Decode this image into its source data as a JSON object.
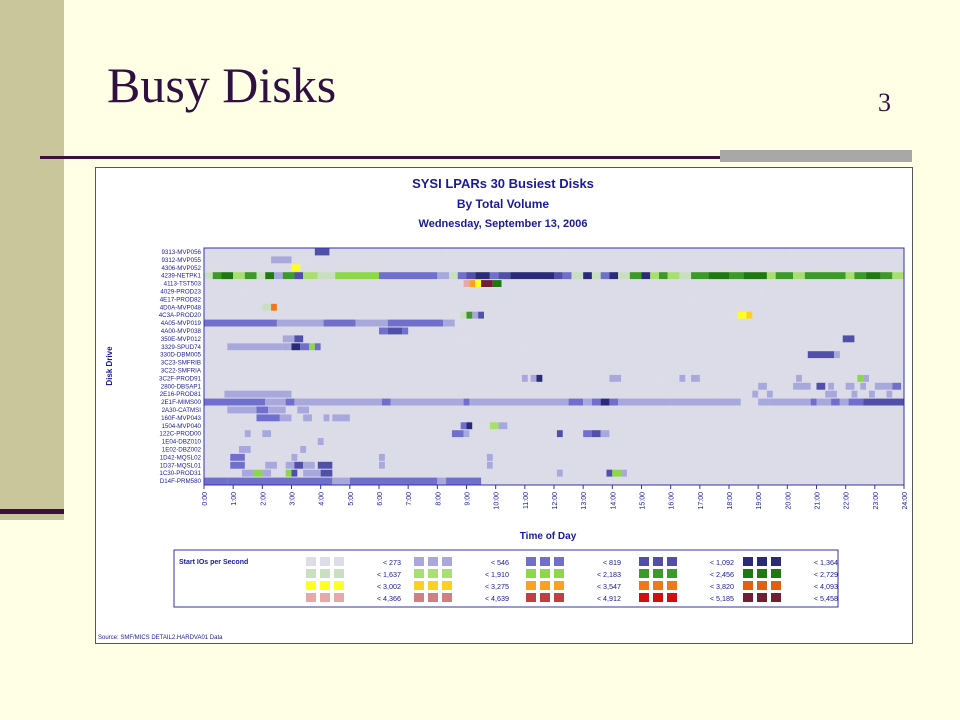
{
  "slide": {
    "title": "Busy Disks",
    "number": "3"
  },
  "chart_data": {
    "type": "heatmap",
    "title": "SYSI LPARs 30 Busiest Disks",
    "subtitle": "By Total Volume",
    "date": "Wednesday, September 13, 2006",
    "xlabel": "Time of Day",
    "ylabel": "Disk Drive",
    "xlim": [
      0,
      24
    ],
    "x_ticks": [
      "0:00",
      "1:00",
      "2:00",
      "3:00",
      "4:00",
      "5:00",
      "6:00",
      "7:00",
      "8:00",
      "9:00",
      "10:00",
      "11:00",
      "12:00",
      "13:00",
      "14:00",
      "15:00",
      "16:00",
      "17:00",
      "18:00",
      "19:00",
      "20:00",
      "21:00",
      "22:00",
      "23:00",
      "24:00"
    ],
    "y_categories": [
      "9313-MVP056",
      "9312-MVP055",
      "4306-MVP052",
      "4239-NETPK1",
      "4113-TST503",
      "4029-PROD23",
      "4E17-PROD82",
      "4D0A-MVP048",
      "4C3A-PROD20",
      "4A05-MVP019",
      "4A00-MVP038",
      "350E-MVP012",
      "3329-SPUD74",
      "330D-DBM005",
      "3C23-SMFRIB",
      "3C22-SMFRIA",
      "3C2F-PROD91",
      "2800-DBSAP1",
      "2E16-PROD81",
      "2E1F-MIMS00",
      "2A30-CATMSI",
      "160F-MVP043",
      "1504-MVP040",
      "122C-PROD00",
      "1E04-DBZ010",
      "1E02-DBZ002",
      "1D42-MQSL02",
      "1D37-MQSL01",
      "1C30-PROD31",
      "D14F-PRM580"
    ],
    "colors": [
      "#DDDDE6",
      "#A8A8DC",
      "#7070CC",
      "#5050A8",
      "#2A2A78",
      "#C8E0C0",
      "#A8E070",
      "#8CD848",
      "#3C9A28",
      "#1E7A10",
      "#FFFF20",
      "#FFD020",
      "#FFA020",
      "#F07818",
      "#E06010",
      "#E8A8A8",
      "#D08080",
      "#C04040",
      "#D01010",
      "#702030"
    ],
    "legend_title": "Start IOs per Second",
    "legend_rows": [
      [
        "< 273",
        "< 546",
        "< 819",
        "< 1,092",
        "< 1,364"
      ],
      [
        "< 1,637",
        "< 1,910",
        "< 2,183",
        "< 2,456",
        "< 2,729"
      ],
      [
        "< 3,002",
        "< 3,275",
        "< 3,547",
        "< 3,820",
        "< 4,093"
      ],
      [
        "< 4,366",
        "< 4,639",
        "< 4,912",
        "< 5,185",
        "< 5,458"
      ]
    ],
    "cells": [
      [
        0,
        0.5,
        0.5,
        0
      ],
      [
        0,
        3.8,
        4.3,
        3
      ],
      [
        0,
        7.7,
        7.9,
        0
      ],
      [
        0,
        8.2,
        8.4,
        0
      ],
      [
        0,
        12.1,
        12.4,
        0
      ],
      [
        0,
        19.5,
        19.7,
        0
      ],
      [
        0,
        20.0,
        20.2,
        0
      ],
      [
        1,
        2.3,
        3.0,
        1
      ],
      [
        1,
        3.2,
        3.5,
        0
      ],
      [
        2,
        0.3,
        0.5,
        0
      ],
      [
        2,
        3.0,
        3.3,
        10
      ],
      [
        3,
        0,
        0.3,
        5
      ],
      [
        3,
        0.3,
        0.6,
        8
      ],
      [
        3,
        0.6,
        1.0,
        9
      ],
      [
        3,
        1.0,
        1.4,
        6
      ],
      [
        3,
        1.4,
        1.8,
        8
      ],
      [
        3,
        1.8,
        2.1,
        5
      ],
      [
        3,
        2.1,
        2.4,
        9
      ],
      [
        3,
        2.4,
        2.7,
        1
      ],
      [
        3,
        2.7,
        3.1,
        8
      ],
      [
        3,
        3.1,
        3.4,
        3
      ],
      [
        3,
        3.4,
        3.9,
        6
      ],
      [
        3,
        3.9,
        4.5,
        5
      ],
      [
        3,
        4.5,
        6.0,
        7
      ],
      [
        3,
        6.0,
        8.0,
        2
      ],
      [
        3,
        8.0,
        8.4,
        1
      ],
      [
        3,
        8.4,
        8.7,
        5
      ],
      [
        3,
        8.7,
        9.0,
        2
      ],
      [
        3,
        9.0,
        9.3,
        3
      ],
      [
        3,
        9.3,
        9.8,
        4
      ],
      [
        3,
        9.8,
        10.1,
        2
      ],
      [
        3,
        10.1,
        10.5,
        3
      ],
      [
        3,
        10.5,
        12.0,
        4
      ],
      [
        3,
        12.0,
        12.3,
        3
      ],
      [
        3,
        12.3,
        12.6,
        2
      ],
      [
        3,
        12.6,
        13.0,
        5
      ],
      [
        3,
        13.0,
        13.3,
        4
      ],
      [
        3,
        13.3,
        13.6,
        5
      ],
      [
        3,
        13.6,
        13.9,
        2
      ],
      [
        3,
        13.9,
        14.2,
        4
      ],
      [
        3,
        14.2,
        14.6,
        5
      ],
      [
        3,
        14.6,
        15.0,
        8
      ],
      [
        3,
        15.0,
        15.3,
        4
      ],
      [
        3,
        15.3,
        15.6,
        6
      ],
      [
        3,
        15.6,
        15.9,
        8
      ],
      [
        3,
        15.9,
        16.3,
        6
      ],
      [
        3,
        16.3,
        16.7,
        5
      ],
      [
        3,
        16.7,
        17.3,
        8
      ],
      [
        3,
        17.3,
        18.0,
        9
      ],
      [
        3,
        18.0,
        18.5,
        8
      ],
      [
        3,
        18.5,
        19.3,
        9
      ],
      [
        3,
        19.3,
        19.6,
        6
      ],
      [
        3,
        19.6,
        20.2,
        8
      ],
      [
        3,
        20.2,
        20.6,
        6
      ],
      [
        3,
        20.6,
        21.0,
        8
      ],
      [
        3,
        21.0,
        22.0,
        8
      ],
      [
        3,
        22.0,
        22.3,
        6
      ],
      [
        3,
        22.3,
        22.7,
        8
      ],
      [
        3,
        22.7,
        23.2,
        9
      ],
      [
        3,
        23.2,
        23.6,
        8
      ],
      [
        3,
        23.6,
        24.0,
        6
      ],
      [
        4,
        8.9,
        9.1,
        15
      ],
      [
        4,
        9.1,
        9.3,
        12
      ],
      [
        4,
        9.3,
        9.5,
        10
      ],
      [
        4,
        9.5,
        9.9,
        19
      ],
      [
        4,
        9.9,
        10.2,
        9
      ],
      [
        5,
        1.3,
        1.5,
        0
      ],
      [
        5,
        19.0,
        19.2,
        0
      ],
      [
        6,
        16.7,
        16.9,
        0
      ],
      [
        7,
        2.0,
        2.3,
        5
      ],
      [
        7,
        2.3,
        2.5,
        13
      ],
      [
        7,
        2.5,
        2.7,
        0
      ],
      [
        8,
        8.4,
        8.8,
        0
      ],
      [
        8,
        8.8,
        9.0,
        5
      ],
      [
        8,
        9.0,
        9.2,
        8
      ],
      [
        8,
        9.2,
        9.4,
        1
      ],
      [
        8,
        9.4,
        9.6,
        3
      ],
      [
        8,
        18.0,
        18.3,
        0
      ],
      [
        8,
        18.3,
        18.6,
        10
      ],
      [
        8,
        18.6,
        18.8,
        11
      ],
      [
        9,
        0,
        2.5,
        2
      ],
      [
        9,
        2.5,
        4.1,
        1
      ],
      [
        9,
        4.1,
        5.2,
        2
      ],
      [
        9,
        5.2,
        6.3,
        1
      ],
      [
        9,
        6.3,
        8.2,
        2
      ],
      [
        9,
        8.2,
        8.6,
        1
      ],
      [
        9,
        8.6,
        8.9,
        0
      ],
      [
        10,
        6.0,
        6.3,
        2
      ],
      [
        10,
        6.3,
        6.8,
        3
      ],
      [
        10,
        6.8,
        7.0,
        2
      ],
      [
        11,
        2.7,
        3.1,
        1
      ],
      [
        11,
        3.1,
        3.4,
        3
      ],
      [
        11,
        8.8,
        9.2,
        0
      ],
      [
        11,
        21.7,
        21.9,
        0
      ],
      [
        11,
        21.9,
        22.3,
        3
      ],
      [
        12,
        0.8,
        2.7,
        1
      ],
      [
        12,
        2.7,
        3.0,
        1
      ],
      [
        12,
        3.0,
        3.3,
        4
      ],
      [
        12,
        3.3,
        3.6,
        2
      ],
      [
        12,
        3.6,
        3.8,
        7
      ],
      [
        12,
        3.8,
        4.0,
        2
      ],
      [
        12,
        10.9,
        11.1,
        0
      ],
      [
        12,
        21.5,
        21.7,
        0
      ],
      [
        13,
        20.7,
        21.6,
        3
      ],
      [
        13,
        21.6,
        21.8,
        1
      ],
      [
        16,
        10.9,
        11.1,
        1
      ],
      [
        16,
        11.2,
        11.4,
        1
      ],
      [
        16,
        11.4,
        11.6,
        4
      ],
      [
        16,
        13.9,
        14.3,
        1
      ],
      [
        16,
        15.4,
        15.6,
        0
      ],
      [
        16,
        16.3,
        16.5,
        1
      ],
      [
        16,
        16.7,
        17.0,
        1
      ],
      [
        16,
        20.3,
        20.5,
        1
      ],
      [
        16,
        22.2,
        22.4,
        0
      ],
      [
        16,
        22.4,
        22.6,
        7
      ],
      [
        16,
        22.6,
        22.8,
        1
      ],
      [
        17,
        18.9,
        19.1,
        0
      ],
      [
        17,
        19.0,
        19.3,
        1
      ],
      [
        17,
        20.2,
        20.5,
        1
      ],
      [
        17,
        20.5,
        20.8,
        1
      ],
      [
        17,
        21.0,
        21.3,
        3
      ],
      [
        17,
        21.4,
        21.6,
        1
      ],
      [
        17,
        22.0,
        22.3,
        1
      ],
      [
        17,
        22.5,
        22.7,
        1
      ],
      [
        17,
        23.0,
        23.6,
        1
      ],
      [
        17,
        23.6,
        23.9,
        2
      ],
      [
        18,
        0.4,
        0.7,
        0
      ],
      [
        18,
        0.7,
        3.0,
        1
      ],
      [
        18,
        3.0,
        3.2,
        0
      ],
      [
        18,
        17.3,
        17.6,
        0
      ],
      [
        18,
        18.8,
        19.0,
        1
      ],
      [
        18,
        19.3,
        19.5,
        1
      ],
      [
        18,
        21.3,
        21.7,
        1
      ],
      [
        18,
        22.2,
        22.4,
        1
      ],
      [
        18,
        22.8,
        23.0,
        1
      ],
      [
        18,
        23.4,
        23.6,
        1
      ],
      [
        18,
        23.6,
        24.0,
        0
      ],
      [
        19,
        0,
        2.1,
        2
      ],
      [
        19,
        2.1,
        2.8,
        1
      ],
      [
        19,
        2.8,
        3.1,
        2
      ],
      [
        19,
        3.1,
        4.2,
        1
      ],
      [
        19,
        4.2,
        6.1,
        1
      ],
      [
        19,
        6.1,
        6.4,
        2
      ],
      [
        19,
        6.4,
        8.9,
        1
      ],
      [
        19,
        8.9,
        9.1,
        2
      ],
      [
        19,
        9.1,
        12.5,
        1
      ],
      [
        19,
        12.5,
        13.0,
        2
      ],
      [
        19,
        13.0,
        13.3,
        1
      ],
      [
        19,
        13.3,
        13.6,
        2
      ],
      [
        19,
        13.6,
        13.9,
        4
      ],
      [
        19,
        13.9,
        14.2,
        2
      ],
      [
        19,
        14.2,
        16.0,
        1
      ],
      [
        19,
        16.0,
        17.4,
        1
      ],
      [
        19,
        17.4,
        18.4,
        1
      ],
      [
        19,
        19.0,
        19.4,
        1
      ],
      [
        19,
        19.4,
        20.8,
        1
      ],
      [
        19,
        20.8,
        21.0,
        2
      ],
      [
        19,
        21.0,
        21.5,
        1
      ],
      [
        19,
        21.5,
        21.8,
        2
      ],
      [
        19,
        21.8,
        22.1,
        1
      ],
      [
        19,
        22.1,
        22.6,
        2
      ],
      [
        19,
        22.6,
        24.0,
        3
      ],
      [
        20,
        0.8,
        1.8,
        1
      ],
      [
        20,
        1.8,
        2.2,
        2
      ],
      [
        20,
        2.2,
        2.8,
        1
      ],
      [
        20,
        3.2,
        3.6,
        1
      ],
      [
        21,
        1.8,
        2.6,
        2
      ],
      [
        21,
        2.6,
        3.0,
        1
      ],
      [
        21,
        3.4,
        3.7,
        1
      ],
      [
        21,
        4.1,
        4.3,
        1
      ],
      [
        21,
        4.4,
        5.0,
        1
      ],
      [
        22,
        8.8,
        9.0,
        2
      ],
      [
        22,
        9.0,
        9.2,
        4
      ],
      [
        22,
        9.2,
        9.4,
        0
      ],
      [
        22,
        9.5,
        9.8,
        0
      ],
      [
        22,
        9.8,
        10.1,
        6
      ],
      [
        22,
        10.1,
        10.4,
        1
      ],
      [
        23,
        1.4,
        1.6,
        1
      ],
      [
        23,
        2.0,
        2.3,
        1
      ],
      [
        23,
        8.5,
        8.9,
        2
      ],
      [
        23,
        8.9,
        9.1,
        1
      ],
      [
        23,
        12.1,
        12.3,
        3
      ],
      [
        23,
        13.0,
        13.3,
        2
      ],
      [
        23,
        13.3,
        13.6,
        3
      ],
      [
        23,
        13.6,
        13.9,
        1
      ],
      [
        24,
        3.9,
        4.1,
        1
      ],
      [
        25,
        1.2,
        1.6,
        1
      ],
      [
        25,
        3.3,
        3.5,
        1
      ],
      [
        26,
        0.9,
        1.4,
        2
      ],
      [
        26,
        2.4,
        2.6,
        0
      ],
      [
        26,
        3.0,
        3.2,
        1
      ],
      [
        26,
        4.2,
        4.4,
        0
      ],
      [
        26,
        6.0,
        6.2,
        1
      ],
      [
        26,
        9.7,
        9.9,
        1
      ],
      [
        27,
        0.9,
        1.4,
        2
      ],
      [
        27,
        2.1,
        2.5,
        1
      ],
      [
        27,
        2.8,
        3.1,
        1
      ],
      [
        27,
        3.1,
        3.4,
        3
      ],
      [
        27,
        3.4,
        3.8,
        1
      ],
      [
        27,
        3.9,
        4.4,
        3
      ],
      [
        27,
        6.0,
        6.2,
        1
      ],
      [
        27,
        9.7,
        9.9,
        1
      ],
      [
        28,
        1.3,
        1.7,
        1
      ],
      [
        28,
        1.7,
        2.0,
        7
      ],
      [
        28,
        2.0,
        2.3,
        1
      ],
      [
        28,
        2.8,
        3.0,
        7
      ],
      [
        28,
        3.0,
        3.2,
        3
      ],
      [
        28,
        3.4,
        4.0,
        1
      ],
      [
        28,
        4.0,
        4.4,
        3
      ],
      [
        28,
        12.1,
        12.3,
        1
      ],
      [
        28,
        13.8,
        14.0,
        3
      ],
      [
        28,
        14.0,
        14.3,
        7
      ],
      [
        28,
        14.3,
        14.5,
        1
      ],
      [
        29,
        0,
        0.8,
        2
      ],
      [
        29,
        0.8,
        4.4,
        2
      ],
      [
        29,
        4.4,
        5.0,
        1
      ],
      [
        29,
        5.0,
        8.0,
        2
      ],
      [
        29,
        8.0,
        8.3,
        1
      ],
      [
        29,
        8.3,
        9.5,
        2
      ]
    ],
    "source": "Source: SMF/MICS DETAIL2.HARDVA01 Data"
  }
}
